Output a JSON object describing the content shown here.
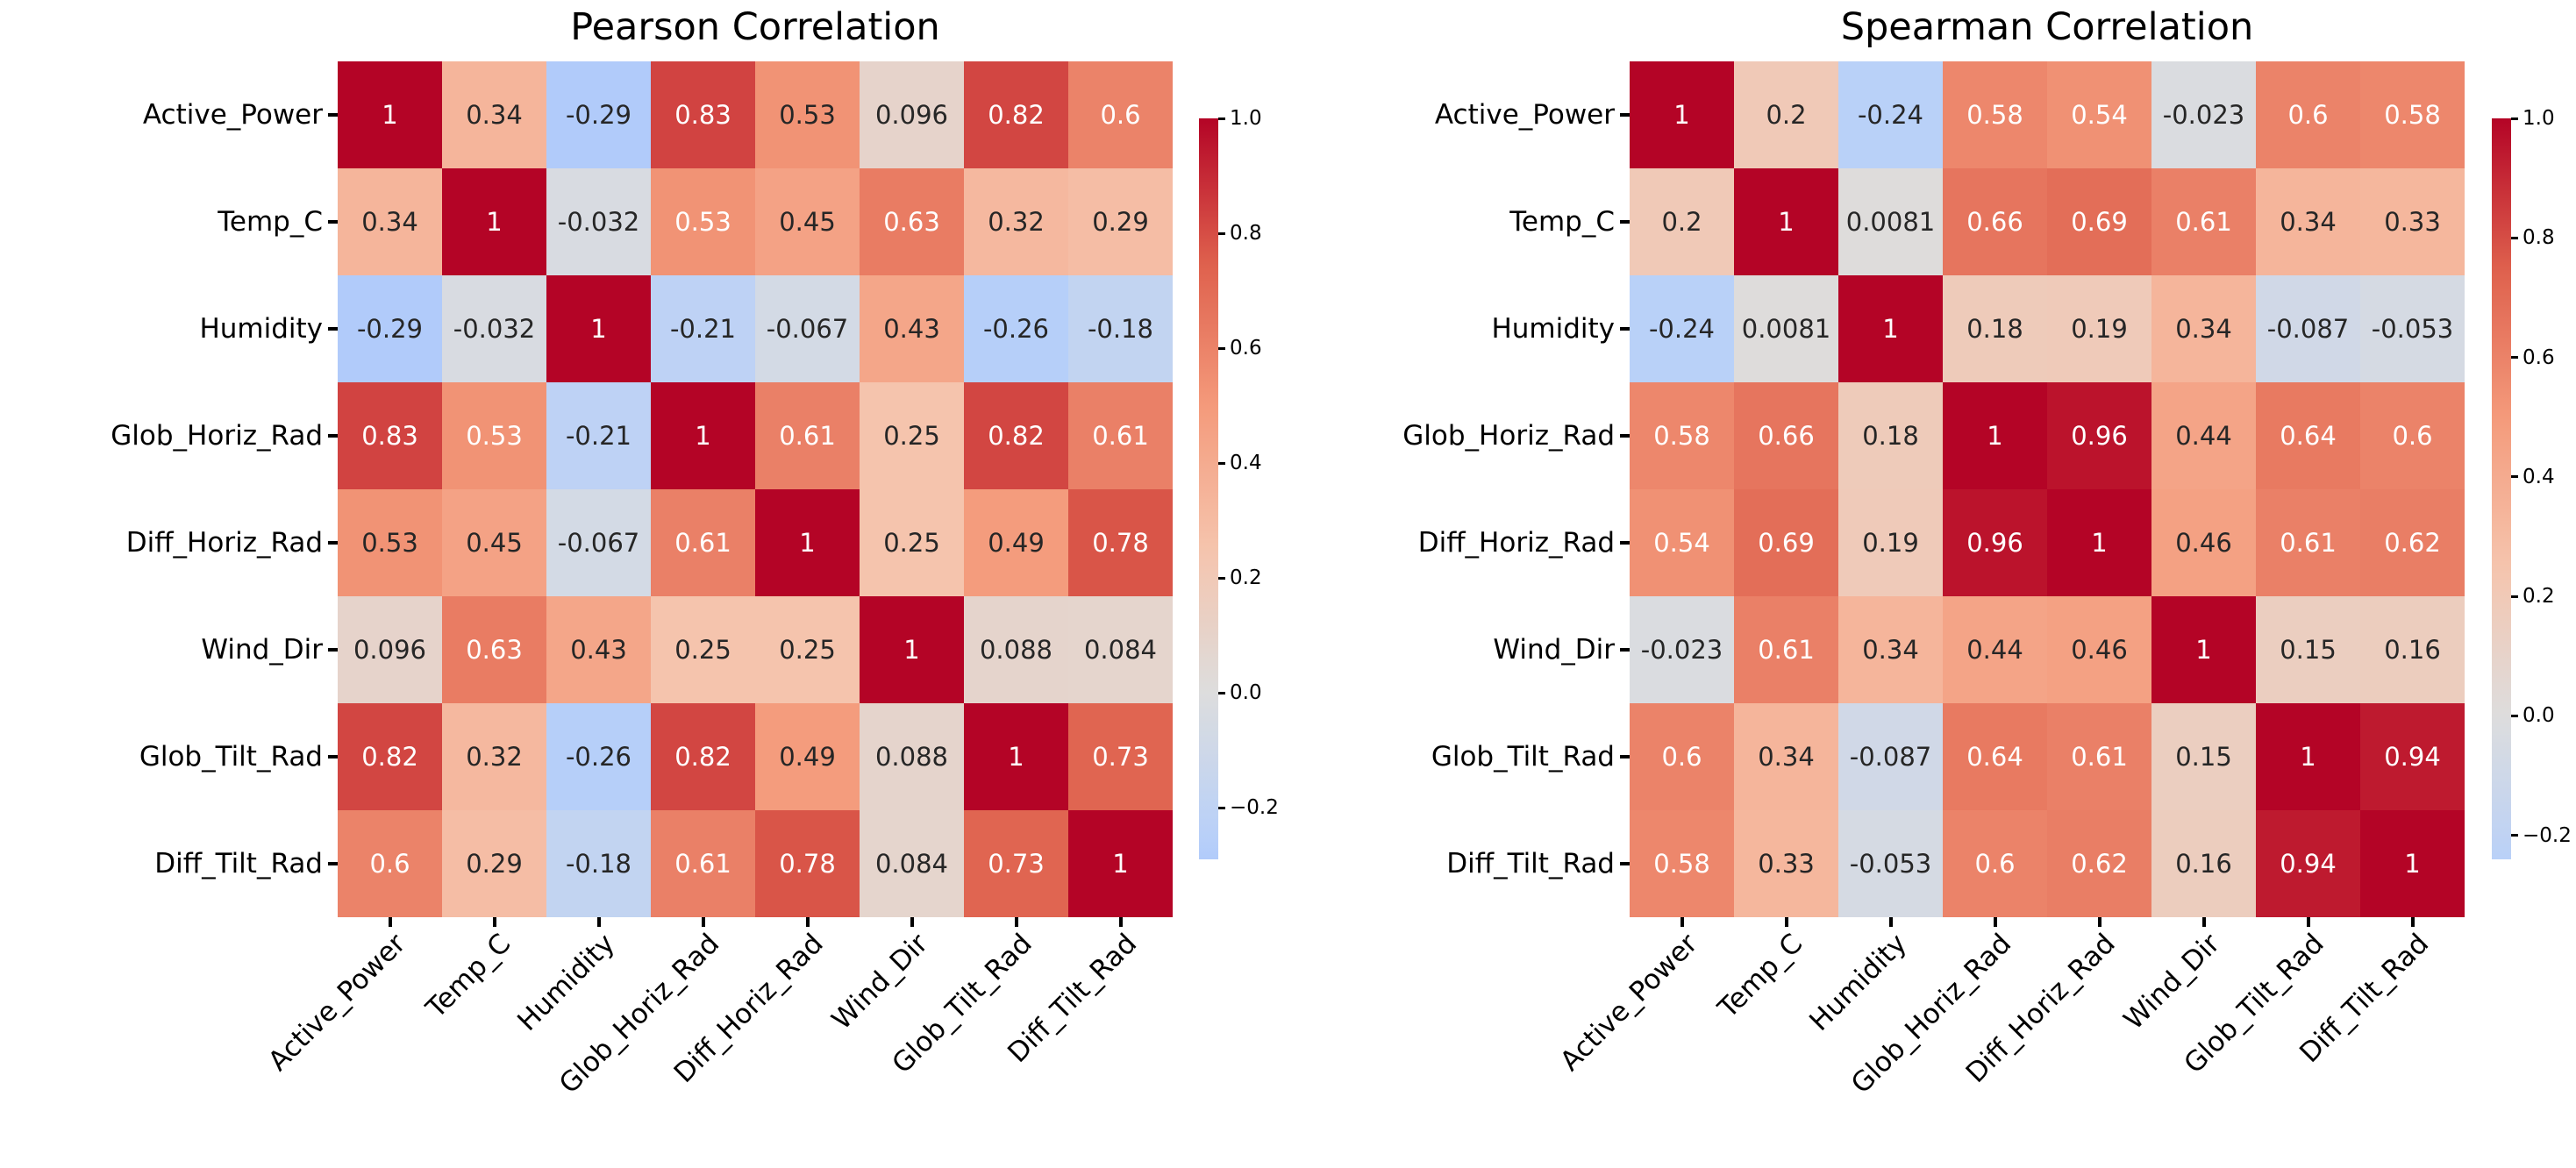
{
  "chart_data": [
    {
      "type": "heatmap",
      "title": "Pearson Correlation",
      "categories": [
        "Active_Power",
        "Temp_C",
        "Humidity",
        "Glob_Horiz_Rad",
        "Diff_Horiz_Rad",
        "Wind_Dir",
        "Glob_Tilt_Rad",
        "Diff_Tilt_Rad"
      ],
      "matrix": [
        [
          1,
          0.34,
          -0.29,
          0.83,
          0.53,
          0.096,
          0.82,
          0.6
        ],
        [
          0.34,
          1,
          -0.032,
          0.53,
          0.45,
          0.63,
          0.32,
          0.29
        ],
        [
          -0.29,
          -0.032,
          1,
          -0.21,
          -0.067,
          0.43,
          -0.26,
          -0.18
        ],
        [
          0.83,
          0.53,
          -0.21,
          1,
          0.61,
          0.25,
          0.82,
          0.61
        ],
        [
          0.53,
          0.45,
          -0.067,
          0.61,
          1,
          0.25,
          0.49,
          0.78
        ],
        [
          0.096,
          0.63,
          0.43,
          0.25,
          0.25,
          1,
          0.088,
          0.084
        ],
        [
          0.82,
          0.32,
          -0.26,
          0.82,
          0.49,
          0.088,
          1,
          0.73
        ],
        [
          0.6,
          0.29,
          -0.18,
          0.61,
          0.78,
          0.084,
          0.73,
          1
        ]
      ],
      "annotation_text_colors": [
        [
          "w",
          "b",
          "b",
          "w",
          "b",
          "b",
          "w",
          "w"
        ],
        [
          "b",
          "w",
          "b",
          "w",
          "b",
          "w",
          "b",
          "b"
        ],
        [
          "b",
          "b",
          "w",
          "b",
          "b",
          "b",
          "b",
          "b"
        ],
        [
          "w",
          "w",
          "b",
          "w",
          "w",
          "b",
          "w",
          "w"
        ],
        [
          "b",
          "b",
          "b",
          "w",
          "w",
          "b",
          "b",
          "w"
        ],
        [
          "b",
          "w",
          "b",
          "b",
          "b",
          "w",
          "b",
          "b"
        ],
        [
          "w",
          "b",
          "b",
          "w",
          "b",
          "b",
          "w",
          "w"
        ],
        [
          "w",
          "b",
          "b",
          "w",
          "w",
          "b",
          "w",
          "w"
        ]
      ],
      "colormap": "coolwarm",
      "color_norm": [
        -1,
        1
      ],
      "vmin": -0.29,
      "vmax": 1.0,
      "colorbar_ticks": [
        1.0,
        0.8,
        0.6,
        0.4,
        0.2,
        0.0,
        -0.2
      ],
      "colorbar_tick_labels": [
        "1.0",
        "0.8",
        "0.6",
        "0.4",
        "0.2",
        "0.0",
        "−0.2"
      ],
      "legend_position": "right-colorbar",
      "grid": "off"
    },
    {
      "type": "heatmap",
      "title": "Spearman Correlation",
      "categories": [
        "Active_Power",
        "Temp_C",
        "Humidity",
        "Glob_Horiz_Rad",
        "Diff_Horiz_Rad",
        "Wind_Dir",
        "Glob_Tilt_Rad",
        "Diff_Tilt_Rad"
      ],
      "matrix": [
        [
          1,
          0.2,
          -0.24,
          0.58,
          0.54,
          -0.023,
          0.6,
          0.58
        ],
        [
          0.2,
          1,
          0.0081,
          0.66,
          0.69,
          0.61,
          0.34,
          0.33
        ],
        [
          -0.24,
          0.0081,
          1,
          0.18,
          0.19,
          0.34,
          -0.087,
          -0.053
        ],
        [
          0.58,
          0.66,
          0.18,
          1,
          0.96,
          0.44,
          0.64,
          0.6
        ],
        [
          0.54,
          0.69,
          0.19,
          0.96,
          1,
          0.46,
          0.61,
          0.62
        ],
        [
          -0.023,
          0.61,
          0.34,
          0.44,
          0.46,
          1,
          0.15,
          0.16
        ],
        [
          0.6,
          0.34,
          -0.087,
          0.64,
          0.61,
          0.15,
          1,
          0.94
        ],
        [
          0.58,
          0.33,
          -0.053,
          0.6,
          0.62,
          0.16,
          0.94,
          1
        ]
      ],
      "annotation_text_colors": [
        [
          "w",
          "b",
          "b",
          "w",
          "w",
          "b",
          "w",
          "w"
        ],
        [
          "b",
          "w",
          "b",
          "w",
          "w",
          "w",
          "b",
          "b"
        ],
        [
          "b",
          "b",
          "w",
          "b",
          "b",
          "b",
          "b",
          "b"
        ],
        [
          "w",
          "w",
          "b",
          "w",
          "w",
          "b",
          "w",
          "w"
        ],
        [
          "w",
          "w",
          "b",
          "w",
          "w",
          "b",
          "w",
          "w"
        ],
        [
          "b",
          "w",
          "b",
          "b",
          "b",
          "w",
          "b",
          "b"
        ],
        [
          "w",
          "b",
          "b",
          "w",
          "w",
          "b",
          "w",
          "w"
        ],
        [
          "w",
          "b",
          "b",
          "w",
          "w",
          "b",
          "w",
          "w"
        ]
      ],
      "colormap": "coolwarm",
      "color_norm": [
        -1,
        1
      ],
      "vmin": -0.24,
      "vmax": 1.0,
      "colorbar_ticks": [
        1.0,
        0.8,
        0.6,
        0.4,
        0.2,
        0.0,
        -0.2
      ],
      "colorbar_tick_labels": [
        "1.0",
        "0.8",
        "0.6",
        "0.4",
        "0.2",
        "0.0",
        "−0.2"
      ],
      "legend_position": "right-colorbar",
      "grid": "off"
    }
  ],
  "colors": {
    "annotation_dark": "#262626",
    "annotation_light": "#ffffff",
    "background": "#ffffff",
    "tick_color": "#000000"
  }
}
